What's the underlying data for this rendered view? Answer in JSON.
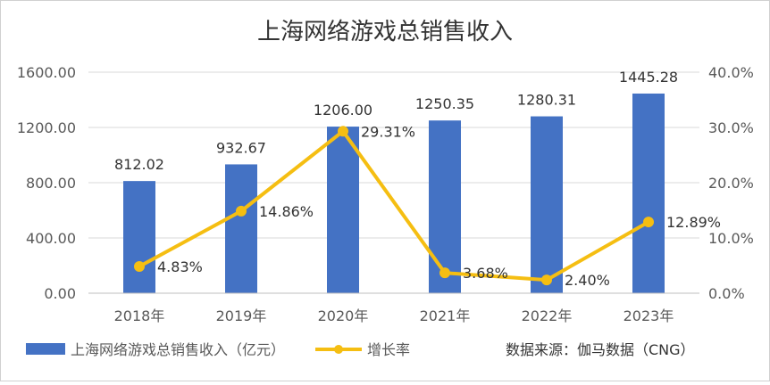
{
  "chart_data": {
    "type": "bar",
    "title": "上海网络游戏总销售收入",
    "categories": [
      "2018年",
      "2019年",
      "2020年",
      "2021年",
      "2022年",
      "2023年"
    ],
    "series": [
      {
        "name": "上海网络游戏总销售收入（亿元）",
        "type": "bar",
        "axis": "left",
        "color": "#4472C4",
        "values": [
          812.02,
          932.67,
          1206.0,
          1250.35,
          1280.31,
          1445.28
        ],
        "labels": [
          "812.02",
          "932.67",
          "1206.00",
          "1250.35",
          "1280.31",
          "1445.28"
        ]
      },
      {
        "name": "增长率",
        "type": "line",
        "axis": "right",
        "color": "#F5BE12",
        "values": [
          4.83,
          14.86,
          29.31,
          3.68,
          2.4,
          12.89
        ],
        "labels": [
          "4.83%",
          "14.86%",
          "29.31%",
          "3.68%",
          "2.40%",
          "12.89%"
        ]
      }
    ],
    "y_left": {
      "ylim": [
        0,
        1600
      ],
      "ticks": [
        0,
        400,
        800,
        1200,
        1600
      ],
      "tick_labels": [
        "0.00",
        "400.00",
        "800.00",
        "1200.00",
        "1600.00"
      ]
    },
    "y_right": {
      "ylim": [
        0,
        40
      ],
      "ticks": [
        0,
        10,
        20,
        30,
        40
      ],
      "tick_labels": [
        "0.0%",
        "10.0%",
        "20.0%",
        "30.0%",
        "40.0%"
      ]
    },
    "grid": true,
    "legend_position": "bottom-left",
    "source_note": "数据来源：伽马数据（CNG）"
  }
}
